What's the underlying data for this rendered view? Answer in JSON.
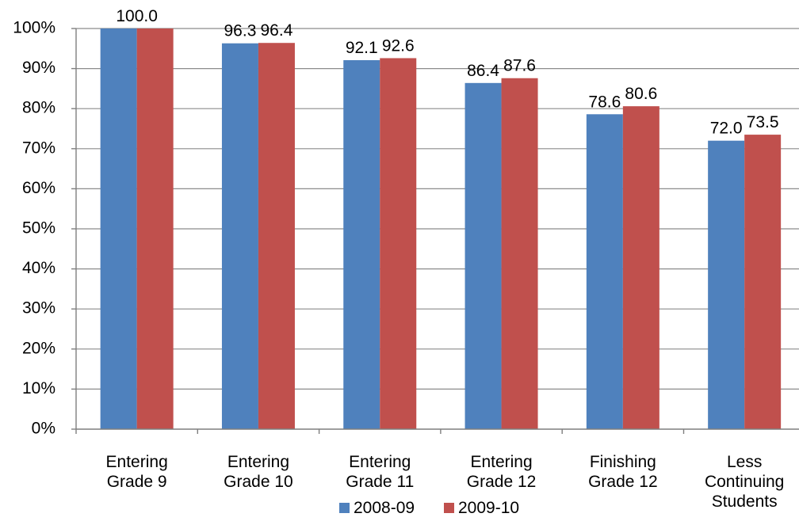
{
  "chart_data": {
    "type": "bar",
    "categories": [
      [
        "Entering",
        "Grade 9"
      ],
      [
        "Entering",
        "Grade 10"
      ],
      [
        "Entering",
        "Grade 11"
      ],
      [
        "Entering",
        "Grade 12"
      ],
      [
        "Finishing",
        "Grade 12"
      ],
      [
        "Less",
        "Continuing",
        "Students"
      ]
    ],
    "series": [
      {
        "name": "2008-09",
        "color": "#4f81bd",
        "values": [
          100.0,
          96.3,
          92.1,
          86.4,
          78.6,
          72.0
        ],
        "labels": [
          "100.0",
          "96.3",
          "92.1",
          "86.4",
          "78.6",
          "72.0"
        ]
      },
      {
        "name": "2009-10",
        "color": "#c0504d",
        "values": [
          100.0,
          96.4,
          92.6,
          87.6,
          80.6,
          73.5
        ],
        "labels": [
          "",
          "96.4",
          "92.6",
          "87.6",
          "80.6",
          "73.5"
        ]
      }
    ],
    "y_ticks": [
      {
        "value": 0,
        "label": "0%"
      },
      {
        "value": 10,
        "label": "10%"
      },
      {
        "value": 20,
        "label": "20%"
      },
      {
        "value": 30,
        "label": "30%"
      },
      {
        "value": 40,
        "label": "40%"
      },
      {
        "value": 50,
        "label": "50%"
      },
      {
        "value": 60,
        "label": "60%"
      },
      {
        "value": 70,
        "label": "70%"
      },
      {
        "value": 80,
        "label": "80%"
      },
      {
        "value": 90,
        "label": "90%"
      },
      {
        "value": 100,
        "label": "100%"
      }
    ],
    "ylim": [
      0,
      100
    ],
    "title": "",
    "xlabel": "",
    "ylabel": "",
    "grid": true,
    "legend_position": "bottom"
  }
}
